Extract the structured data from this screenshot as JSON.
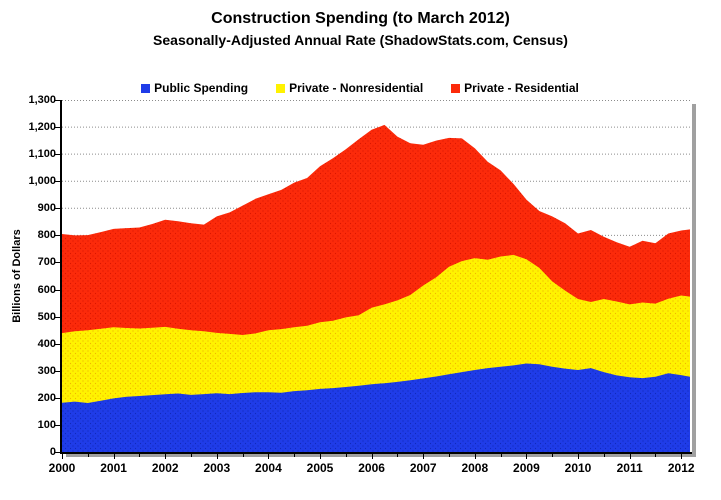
{
  "title": "Construction Spending (to March 2012)",
  "subtitle": "Seasonally-Adjusted Annual Rate (ShadowStats.com, Census)",
  "y_axis": {
    "label": "Billions of Dollars",
    "ticks": [
      "0",
      "100",
      "200",
      "300",
      "400",
      "500",
      "600",
      "700",
      "800",
      "900",
      "1,000",
      "1,100",
      "1,200",
      "1,300"
    ]
  },
  "x_axis": {
    "ticks": [
      "2000",
      "2001",
      "2002",
      "2003",
      "2004",
      "2005",
      "2006",
      "2007",
      "2008",
      "2009",
      "2010",
      "2011",
      "2012"
    ]
  },
  "colors": {
    "grid": "#8c8c8c",
    "axis": "#000000",
    "frame_shadow": "#a0a0a0",
    "background": "#ffffff"
  },
  "chart_data": {
    "type": "area",
    "stacked": true,
    "title": "Construction Spending (to March 2012)",
    "subtitle": "Seasonally-Adjusted Annual Rate (ShadowStats.com, Census)",
    "xlabel": "",
    "ylabel": "Billions of Dollars",
    "x_range": [
      2000,
      2012.17
    ],
    "ylim": [
      0,
      1300
    ],
    "grid": true,
    "legend_position": "top",
    "x": [
      2000.0,
      2000.25,
      2000.5,
      2000.75,
      2001.0,
      2001.25,
      2001.5,
      2001.75,
      2002.0,
      2002.25,
      2002.5,
      2002.75,
      2003.0,
      2003.25,
      2003.5,
      2003.75,
      2004.0,
      2004.25,
      2004.5,
      2004.75,
      2005.0,
      2005.25,
      2005.5,
      2005.75,
      2006.0,
      2006.25,
      2006.5,
      2006.75,
      2007.0,
      2007.25,
      2007.5,
      2007.75,
      2008.0,
      2008.25,
      2008.5,
      2008.75,
      2009.0,
      2009.25,
      2009.5,
      2009.75,
      2010.0,
      2010.25,
      2010.5,
      2010.75,
      2011.0,
      2011.25,
      2011.5,
      2011.75,
      2012.0,
      2012.17
    ],
    "series": [
      {
        "name": "Public Spending",
        "color": "#1f3ce8",
        "dot_color": "#1028b8",
        "values": [
          182,
          186,
          181,
          189,
          198,
          204,
          207,
          210,
          213,
          216,
          211,
          214,
          217,
          214,
          218,
          221,
          221,
          219,
          225,
          228,
          233,
          236,
          240,
          245,
          250,
          254,
          259,
          265,
          272,
          279,
          287,
          295,
          303,
          310,
          315,
          320,
          327,
          324,
          315,
          308,
          303,
          310,
          295,
          283,
          276,
          273,
          278,
          291,
          284,
          278
        ]
      },
      {
        "name": "Private - Nonresidential",
        "color": "#fff200",
        "dot_color": "#f0b400",
        "values": [
          257,
          260,
          269,
          266,
          263,
          254,
          249,
          249,
          249,
          239,
          239,
          232,
          223,
          222,
          214,
          217,
          229,
          235,
          236,
          238,
          246,
          249,
          257,
          260,
          283,
          291,
          301,
          315,
          343,
          366,
          397,
          410,
          413,
          400,
          407,
          408,
          385,
          356,
          315,
          288,
          262,
          244,
          270,
          273,
          269,
          279,
          270,
          275,
          294,
          296
        ]
      },
      {
        "name": "Private - Residential",
        "color": "#fc2a0a",
        "dot_color": "#d81400",
        "values": [
          366,
          354,
          351,
          357,
          363,
          369,
          373,
          383,
          396,
          397,
          395,
          394,
          430,
          449,
          478,
          497,
          502,
          514,
          534,
          546,
          576,
          600,
          621,
          650,
          657,
          663,
          605,
          560,
          520,
          505,
          476,
          453,
          406,
          362,
          318,
          262,
          220,
          210,
          240,
          249,
          242,
          266,
          230,
          219,
          213,
          228,
          223,
          241,
          240,
          248
        ]
      }
    ]
  }
}
